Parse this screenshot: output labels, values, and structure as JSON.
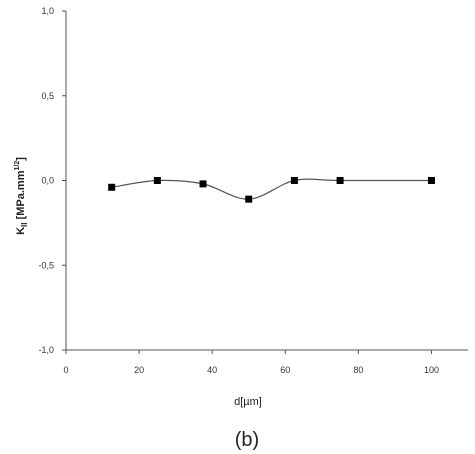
{
  "chart_data": {
    "type": "line",
    "x": [
      12.5,
      25,
      37.5,
      50,
      62.5,
      75,
      100
    ],
    "series": [
      {
        "values": [
          -0.04,
          0.0,
          -0.02,
          -0.11,
          0.0,
          0.0,
          0.0
        ]
      }
    ],
    "marker": "square",
    "line_style": "smooth",
    "xlabel": "d[µm]",
    "ylabel": "K_II [MPa.mm^1/2]",
    "xlim": [
      0,
      110
    ],
    "ylim": [
      -1.0,
      1.0
    ],
    "xticks": [
      0,
      20,
      40,
      60,
      80,
      100
    ],
    "xtick_labels": [
      "0",
      "20",
      "40",
      "60",
      "80",
      "100"
    ],
    "yticks": [
      -1.0,
      -0.5,
      0.0,
      0.5,
      1.0
    ],
    "ytick_labels": [
      "-1,0",
      "-0,5",
      "0,0",
      "0,5",
      "1,0"
    ],
    "grid": false,
    "colors": {
      "line": "#555555",
      "marker": "#000000",
      "axis": "#555555"
    }
  },
  "caption": "(b)",
  "ylabel_parts": {
    "k": "K",
    "sub": "II",
    "unit": " [MPa.mm",
    "sup": "1/2",
    "close": "]"
  }
}
